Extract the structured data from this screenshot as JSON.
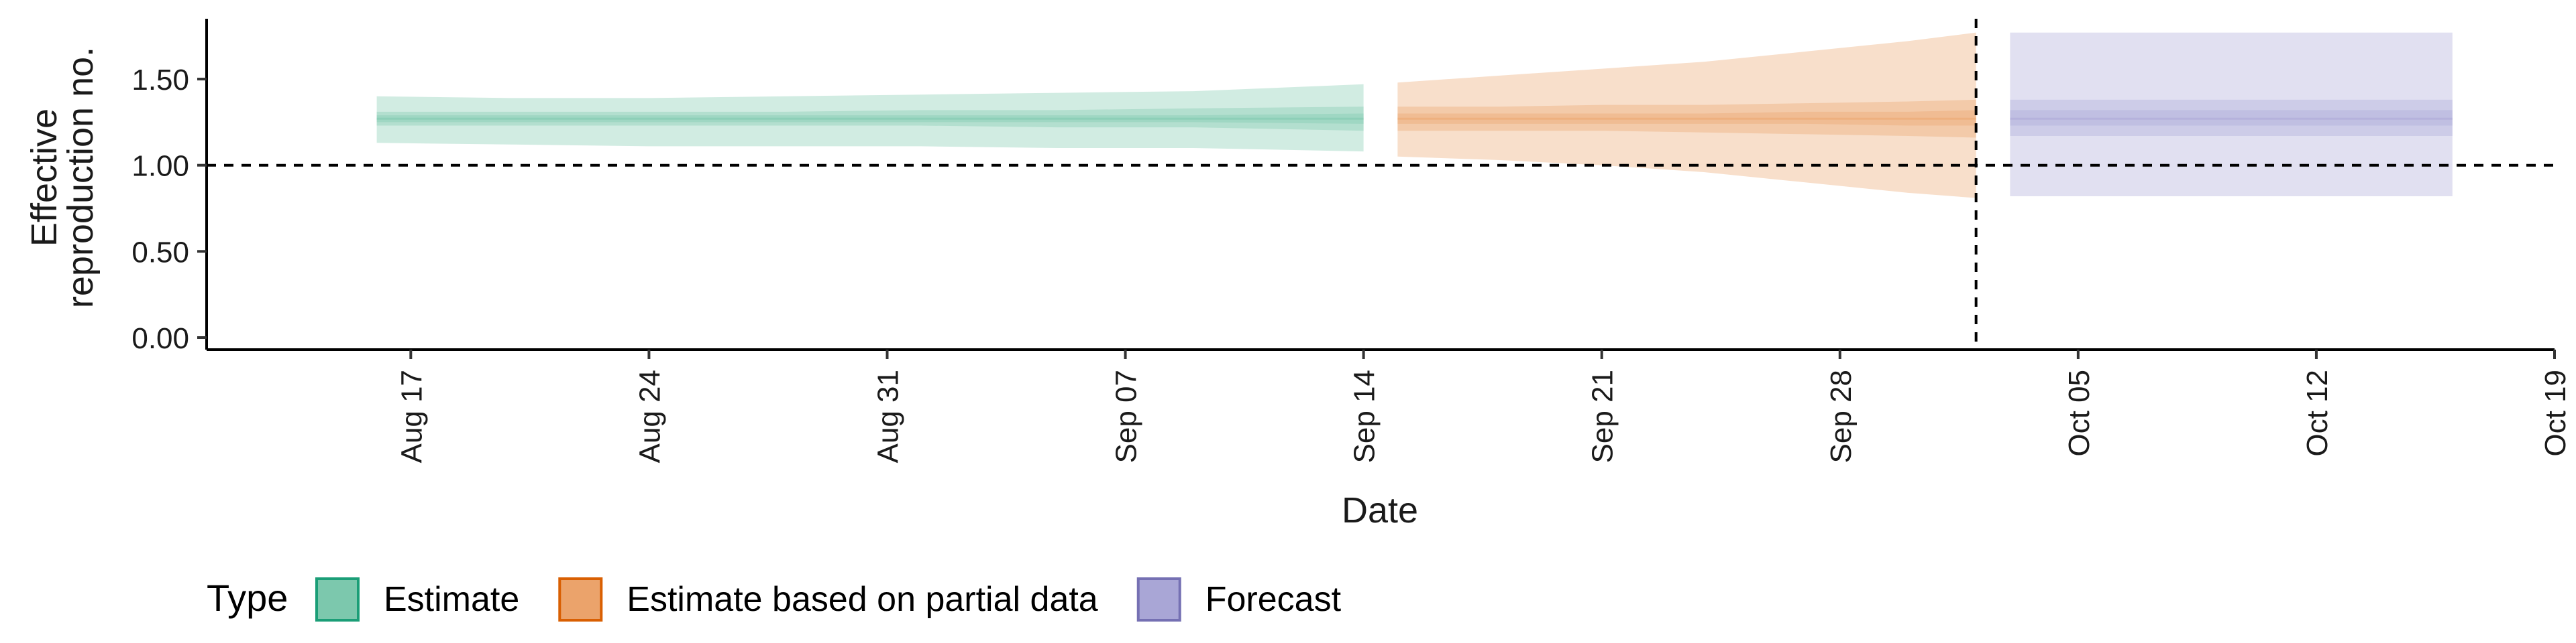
{
  "chart_data": {
    "type": "area",
    "xlabel": "Date",
    "ylabel": "Effective\nreproduction no.",
    "y_ticks": [
      "0.00",
      "0.50",
      "1.00",
      "1.50"
    ],
    "ylim": [
      -0.07,
      1.85
    ],
    "xlim": [
      "2020-08-11",
      "2020-10-19"
    ],
    "x_ticks": [
      {
        "date": "2020-08-17",
        "label": "Aug 17"
      },
      {
        "date": "2020-08-24",
        "label": "Aug 24"
      },
      {
        "date": "2020-08-31",
        "label": "Aug 31"
      },
      {
        "date": "2020-09-07",
        "label": "Sep 07"
      },
      {
        "date": "2020-09-14",
        "label": "Sep 14"
      },
      {
        "date": "2020-09-21",
        "label": "Sep 21"
      },
      {
        "date": "2020-09-28",
        "label": "Sep 28"
      },
      {
        "date": "2020-10-05",
        "label": "Oct 05"
      },
      {
        "date": "2020-10-12",
        "label": "Oct 12"
      },
      {
        "date": "2020-10-19",
        "label": "Oct 19"
      }
    ],
    "reference_line_y": 1.0,
    "vertical_line_date": "2020-10-02",
    "legend": {
      "title": "Type",
      "position": "bottom"
    },
    "series": [
      {
        "name": "Estimate",
        "color": "#1b9e77",
        "fill": "#7cc8ad",
        "x": [
          "2020-08-16",
          "2020-08-20",
          "2020-08-24",
          "2020-08-28",
          "2020-09-01",
          "2020-09-05",
          "2020-09-09",
          "2020-09-14"
        ],
        "median": [
          1.27,
          1.27,
          1.27,
          1.27,
          1.27,
          1.27,
          1.27,
          1.27
        ],
        "lower_20": [
          1.25,
          1.25,
          1.25,
          1.25,
          1.25,
          1.25,
          1.25,
          1.24
        ],
        "upper_20": [
          1.29,
          1.29,
          1.29,
          1.29,
          1.29,
          1.29,
          1.29,
          1.3
        ],
        "lower_50": [
          1.23,
          1.23,
          1.23,
          1.23,
          1.23,
          1.22,
          1.22,
          1.2
        ],
        "upper_50": [
          1.31,
          1.31,
          1.31,
          1.31,
          1.32,
          1.32,
          1.33,
          1.34
        ],
        "lower_90": [
          1.13,
          1.12,
          1.11,
          1.11,
          1.11,
          1.1,
          1.1,
          1.08
        ],
        "upper_90": [
          1.4,
          1.39,
          1.39,
          1.4,
          1.41,
          1.42,
          1.43,
          1.47
        ]
      },
      {
        "name": "Estimate based on partial data",
        "color": "#d95f02",
        "fill": "#eba36b",
        "x": [
          "2020-09-15",
          "2020-09-18",
          "2020-09-21",
          "2020-09-24",
          "2020-09-27",
          "2020-09-30",
          "2020-10-02"
        ],
        "median": [
          1.27,
          1.27,
          1.27,
          1.27,
          1.27,
          1.27,
          1.27
        ],
        "lower_20": [
          1.24,
          1.24,
          1.24,
          1.24,
          1.24,
          1.23,
          1.23
        ],
        "upper_20": [
          1.3,
          1.3,
          1.3,
          1.3,
          1.31,
          1.31,
          1.32
        ],
        "lower_50": [
          1.2,
          1.2,
          1.2,
          1.19,
          1.18,
          1.17,
          1.16
        ],
        "upper_50": [
          1.34,
          1.34,
          1.35,
          1.35,
          1.36,
          1.37,
          1.38
        ],
        "lower_90": [
          1.05,
          1.03,
          1.0,
          0.96,
          0.9,
          0.84,
          0.81
        ],
        "upper_90": [
          1.48,
          1.52,
          1.56,
          1.6,
          1.66,
          1.72,
          1.77
        ]
      },
      {
        "name": "Forecast",
        "color": "#7570b3",
        "fill": "#a9a6d6",
        "x": [
          "2020-10-03",
          "2020-10-16"
        ],
        "median": [
          1.27,
          1.27
        ],
        "lower_20": [
          1.23,
          1.23
        ],
        "upper_20": [
          1.32,
          1.32
        ],
        "lower_50": [
          1.17,
          1.17
        ],
        "upper_50": [
          1.38,
          1.38
        ],
        "lower_90": [
          0.82,
          0.82
        ],
        "upper_90": [
          1.77,
          1.77
        ]
      }
    ]
  }
}
